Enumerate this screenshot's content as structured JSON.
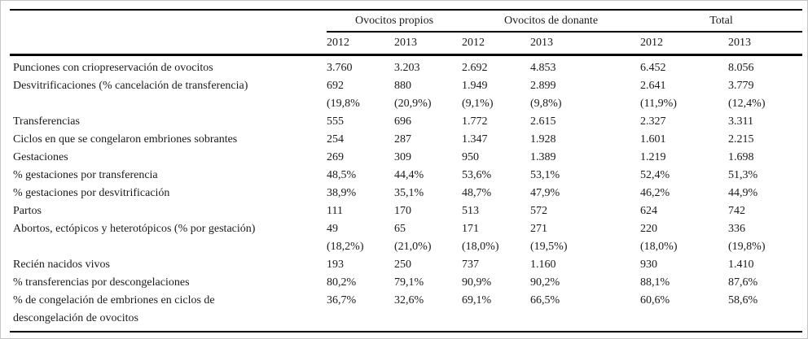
{
  "table": {
    "column_groups": [
      {
        "label": "Ovocitos propios"
      },
      {
        "label": "Ovocitos de donante"
      },
      {
        "label": "Total"
      }
    ],
    "year_columns": [
      "2012",
      "2013",
      "2012",
      "2013",
      "2012",
      "2013"
    ],
    "rows": [
      {
        "label": "Punciones con criopreservación de ovocitos",
        "values": [
          "3.760",
          "3.203",
          "2.692",
          "4.853",
          "6.452",
          "8.056"
        ]
      },
      {
        "label": "Desvitrificaciones (% cancelación de transferencia)",
        "values": [
          "692\n(19,8%",
          "880\n(20,9%)",
          "1.949\n(9,1%)",
          "2.899\n(9,8%)",
          "2.641\n(11,9%)",
          "3.779\n(12,4%)"
        ]
      },
      {
        "label": "Transferencias",
        "values": [
          "555",
          "696",
          "1.772",
          "2.615",
          "2.327",
          "3.311"
        ]
      },
      {
        "label": "Ciclos en que se congelaron embriones sobrantes",
        "values": [
          "254",
          "287",
          "1.347",
          "1.928",
          "1.601",
          "2.215"
        ]
      },
      {
        "label": "Gestaciones",
        "values": [
          "269",
          "309",
          "950",
          "1.389",
          "1.219",
          "1.698"
        ]
      },
      {
        "label": "% gestaciones por transferencia",
        "values": [
          "48,5%",
          "44,4%",
          "53,6%",
          "53,1%",
          "52,4%",
          "51,3%"
        ]
      },
      {
        "label": "% gestaciones por desvitrificación",
        "values": [
          "38,9%",
          "35,1%",
          "48,7%",
          "47,9%",
          "46,2%",
          "44,9%"
        ]
      },
      {
        "label": "Partos",
        "values": [
          "111",
          "170",
          "513",
          "572",
          "624",
          "742"
        ]
      },
      {
        "label": "Abortos, ectópicos y heterotópicos (% por gestación)",
        "values": [
          "49\n(18,2%)",
          "65\n(21,0%)",
          "171\n(18,0%)",
          "271\n(19,5%)",
          "220\n(18,0%)",
          "336\n(19,8%)"
        ]
      },
      {
        "label": "Recién nacidos vivos",
        "values": [
          "193",
          "250",
          "737",
          "1.160",
          "930",
          "1.410"
        ]
      },
      {
        "label": "% transferencias por descongelaciones",
        "values": [
          "80,2%",
          "79,1%",
          "90,9%",
          "90,2%",
          "88,1%",
          "87,6%"
        ]
      },
      {
        "label": "% de congelación de embriones en ciclos de\ndescongelación de ovocitos",
        "values": [
          "36,7%",
          "32,6%",
          "69,1%",
          "66,5%",
          "60,6%",
          "58,6%"
        ]
      }
    ]
  }
}
